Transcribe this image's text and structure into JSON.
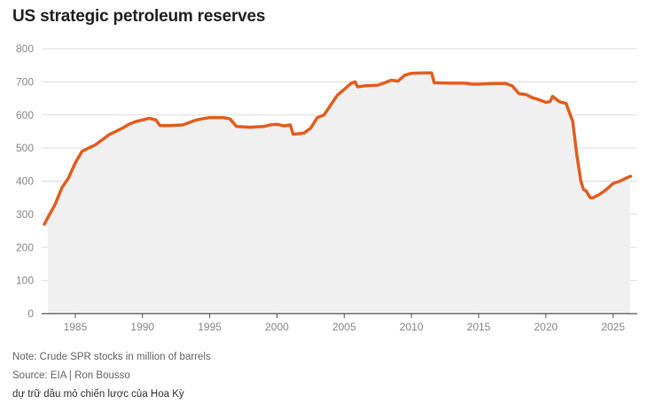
{
  "chart_data": {
    "type": "area",
    "title": "US strategic petroleum reserves",
    "xlabel": "",
    "ylabel": "",
    "xlim": [
      1982.5,
      2026.8
    ],
    "ylim": [
      0,
      800
    ],
    "yticks": [
      0,
      100,
      200,
      300,
      400,
      500,
      600,
      700,
      800
    ],
    "xticks": [
      1985,
      1990,
      1995,
      2000,
      2005,
      2010,
      2015,
      2020,
      2025
    ],
    "grid": true,
    "line_color": "#e35d1f",
    "fill_color": "#f0f0f0",
    "series": [
      {
        "x": [
          1982.7,
          1983.0,
          1983.5,
          1984.0,
          1984.5,
          1985.0,
          1985.5,
          1986.0,
          1986.5,
          1987.0,
          1987.5,
          1988.0,
          1988.5,
          1989.0,
          1989.5,
          1990.0,
          1990.5,
          1991.0,
          1991.3,
          1992.0,
          1993.0,
          1994.0,
          1995.0,
          1996.0,
          1996.5,
          1997.0,
          1998.0,
          1999.0,
          1999.5,
          2000.0,
          2000.5,
          2001.0,
          2001.2,
          2001.5,
          2002.0,
          2002.5,
          2003.0,
          2003.5,
          2004.0,
          2004.5,
          2005.0,
          2005.5,
          2005.8,
          2006.0,
          2006.5,
          2007.0,
          2007.5,
          2008.0,
          2008.5,
          2009.0,
          2009.5,
          2010.0,
          2011.0,
          2011.5,
          2011.7,
          2012.0,
          2013.0,
          2014.0,
          2014.5,
          2015.0,
          2015.5,
          2016.0,
          2017.0,
          2017.5,
          2018.0,
          2018.5,
          2019.0,
          2019.5,
          2020.0,
          2020.3,
          2020.5,
          2021.0,
          2021.5,
          2022.0,
          2022.3,
          2022.6,
          2022.8,
          2023.0,
          2023.3,
          2023.5,
          2024.0,
          2024.5,
          2025.0,
          2025.5,
          2026.0,
          2026.3
        ],
        "values": [
          270,
          293,
          330,
          380,
          410,
          455,
          490,
          500,
          510,
          525,
          540,
          550,
          560,
          572,
          580,
          585,
          590,
          585,
          568,
          568,
          570,
          585,
          592,
          592,
          588,
          565,
          563,
          565,
          570,
          572,
          567,
          570,
          542,
          543,
          545,
          560,
          592,
          600,
          630,
          660,
          677,
          695,
          700,
          685,
          688,
          689,
          690,
          697,
          705,
          702,
          720,
          726,
          727,
          727,
          697,
          697,
          696,
          696,
          693,
          693,
          694,
          695,
          695,
          688,
          664,
          662,
          652,
          646,
          638,
          640,
          656,
          640,
          635,
          580,
          480,
          400,
          375,
          370,
          350,
          350,
          360,
          375,
          393,
          400,
          410,
          415
        ]
      }
    ]
  },
  "notes": {
    "note": "Note: Crude SPR stocks in million of barrels",
    "source": "Source: EIA | Ron Bousso"
  },
  "caption": "dự trữ dầu mỏ chiến lược của Hoa Kỳ"
}
